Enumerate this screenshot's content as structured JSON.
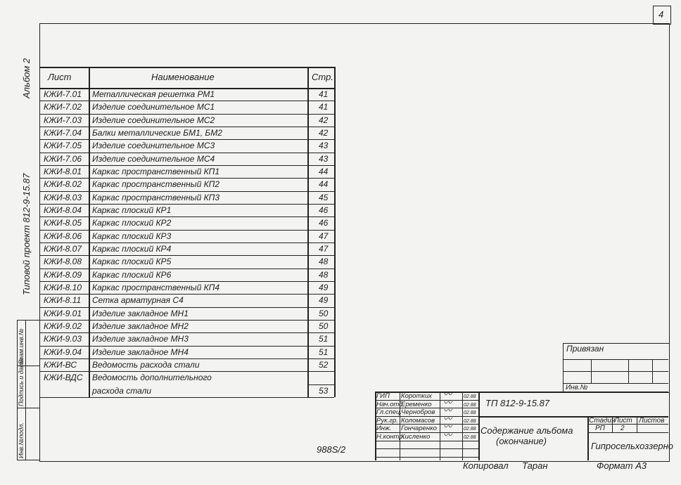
{
  "sheet_number": "4",
  "margin": {
    "album": "Альбом 2",
    "project": "Типовой проект 812-9-15.87",
    "stamp": [
      "Инв.№подл.",
      "Подпись и дата",
      "Взам.инв.№"
    ]
  },
  "table": {
    "headers": [
      "Лист",
      "Наименование",
      "Стр."
    ],
    "rows": [
      [
        "КЖИ-7.01",
        "Металлическая решетка РМ1",
        "41"
      ],
      [
        "КЖИ-7.02",
        "Изделие соединительное МС1",
        "41"
      ],
      [
        "КЖИ-7.03",
        "Изделие соединительное МС2",
        "42"
      ],
      [
        "КЖИ-7.04",
        "Балки металлические БМ1, БМ2",
        "42"
      ],
      [
        "КЖИ-7.05",
        "Изделие соединительное МС3",
        "43"
      ],
      [
        "КЖИ-7.06",
        "Изделие соединительное МС4",
        "43"
      ],
      [
        "КЖИ-8.01",
        "Каркас пространственный КП1",
        "44"
      ],
      [
        "КЖИ-8.02",
        "Каркас пространственный КП2",
        "44"
      ],
      [
        "КЖИ-8.03",
        "Каркас пространственный КП3",
        "45"
      ],
      [
        "КЖИ-8.04",
        "Каркас плоский КР1",
        "46"
      ],
      [
        "КЖИ-8.05",
        "Каркас плоский КР2",
        "46"
      ],
      [
        "КЖИ-8.06",
        "Каркас плоский КР3",
        "47"
      ],
      [
        "КЖИ-8.07",
        "Каркас плоский КР4",
        "47"
      ],
      [
        "КЖИ-8.08",
        "Каркас плоский КР5",
        "48"
      ],
      [
        "КЖИ-8.09",
        "Каркас плоский КР6",
        "48"
      ],
      [
        "КЖИ-8.10",
        "Каркас пространственный КП4",
        "49"
      ],
      [
        "КЖИ-8.11",
        "Сетка арматурная С4",
        "49"
      ],
      [
        "КЖИ-9.01",
        "Изделие закладное МН1",
        "50"
      ],
      [
        "КЖИ-9.02",
        "Изделие закладное МН2",
        "50"
      ],
      [
        "КЖИ-9.03",
        "Изделие закладное МН3",
        "51"
      ],
      [
        "КЖИ-9.04",
        "Изделие закладное МН4",
        "51"
      ],
      [
        "КЖИ-ВС",
        "Ведомость расхода стали",
        "52"
      ],
      [
        "КЖИ-ВДС",
        "Ведомость дополнительного",
        ""
      ],
      [
        "",
        "расхода стали",
        "53"
      ]
    ]
  },
  "doc_code": "988S/2",
  "binding": {
    "label": "Привязан",
    "inv": "Инв.№"
  },
  "title_block": {
    "staff": [
      [
        "ГИП",
        "Коротких",
        "02.88"
      ],
      [
        "Нач.отд.",
        "Еременко",
        "02.88"
      ],
      [
        "Гл.спец.",
        "Чернобров",
        "02.88"
      ],
      [
        "Рук.гр.",
        "Коломасов",
        "02.88"
      ],
      [
        "Инж.",
        "Гончаренко",
        "02.88"
      ],
      [
        "Н.контр.",
        "Кисленко",
        "02.88"
      ]
    ],
    "project_code": "ТП 812-9-15.87",
    "title_line1": "Содержание альбома",
    "title_line2": "(окончание)",
    "stage_label": "Стадия",
    "sheet_label": "Лист",
    "sheets_label": "Листов",
    "stage": "РП",
    "sheet": "2",
    "organization": "Гипросельхоззерно"
  },
  "footer": {
    "copied": "Копировал",
    "copier": "Таран",
    "format": "Формат А3"
  }
}
